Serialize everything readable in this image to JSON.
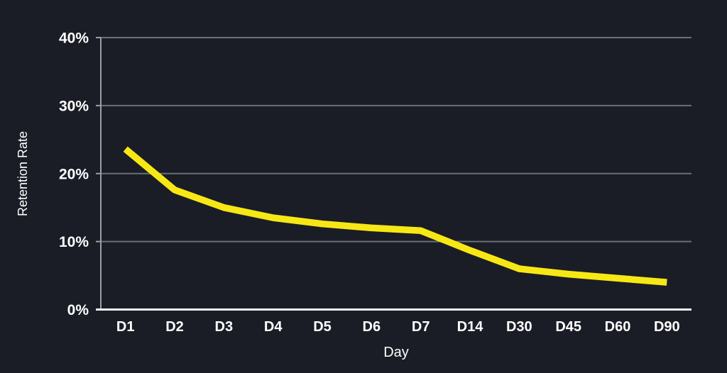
{
  "chart": {
    "background_color": "#1a1d26",
    "series_color": "#f7e815",
    "grid_color": "#6b6f77",
    "axis_color": "#9aa0a7",
    "baseline_color": "#f1f2f4",
    "text_color": "#ffffff"
  },
  "chart_data": {
    "type": "line",
    "title": "",
    "categories": [
      "D1",
      "D2",
      "D3",
      "D4",
      "D5",
      "D6",
      "D7",
      "D14",
      "D30",
      "D45",
      "D60",
      "D90"
    ],
    "values": [
      23.6,
      17.6,
      15.0,
      13.5,
      12.6,
      12.0,
      11.6,
      8.7,
      6.0,
      5.2,
      4.6,
      4.0
    ],
    "xlabel": "Day",
    "ylabel": "Retention Rate",
    "yticks": [
      0,
      10,
      20,
      30,
      40
    ],
    "ytick_labels": [
      "0%",
      "10%",
      "20%",
      "30%",
      "40%"
    ],
    "ylim": [
      0,
      40
    ],
    "grid": "horizontal-only",
    "legend_position": "none"
  }
}
